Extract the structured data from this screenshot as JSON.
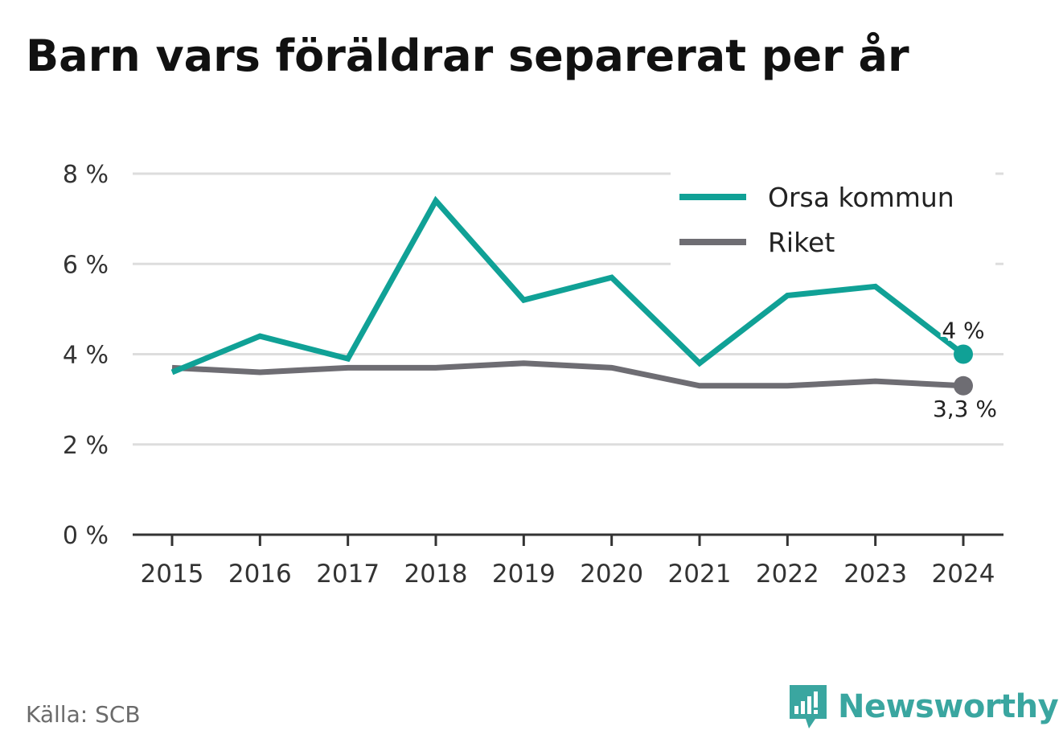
{
  "title": "Barn vars föräldrar separerat per år",
  "source": "Källa: SCB",
  "brand": "Newsworthy",
  "chart_data": {
    "type": "line",
    "x": [
      "2015",
      "2016",
      "2017",
      "2018",
      "2019",
      "2020",
      "2021",
      "2022",
      "2023",
      "2024"
    ],
    "ylim": [
      0,
      8
    ],
    "yticks": [
      0,
      2,
      4,
      6,
      8
    ],
    "ytick_labels": [
      "0 %",
      "2 %",
      "4 %",
      "6 %",
      "8 %"
    ],
    "grid": true,
    "legend_position": "top-right",
    "series": [
      {
        "name": "Orsa kommun",
        "color": "#10a196",
        "values": [
          3.6,
          4.4,
          3.9,
          7.4,
          5.2,
          5.7,
          3.8,
          5.3,
          5.5,
          4.0
        ],
        "end_label": "4 %"
      },
      {
        "name": "Riket",
        "color": "#6e6d73",
        "values": [
          3.7,
          3.6,
          3.7,
          3.7,
          3.8,
          3.7,
          3.3,
          3.3,
          3.4,
          3.3
        ],
        "end_label": "3,3 %"
      }
    ]
  }
}
